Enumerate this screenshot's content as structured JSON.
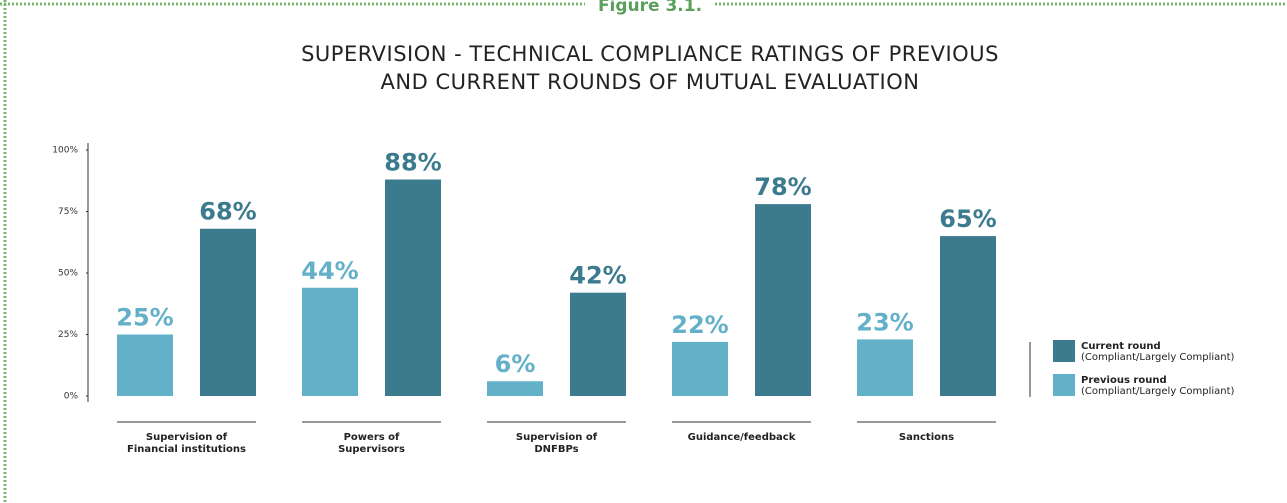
{
  "chart_data": {
    "type": "bar",
    "figure_label": "Figure 3.1.",
    "title": "SUPERVISION - TECHNICAL COMPLIANCE RATINGS OF PREVIOUS\nAND CURRENT ROUNDS OF MUTUAL EVALUATION",
    "categories": [
      "Supervision of\nFinancial institutions",
      "Powers of\nSupervisors",
      "Supervision of\nDNFBPs",
      "Guidance/feedback",
      "Sanctions"
    ],
    "series": [
      {
        "name": "Previous round",
        "color": "#63b1c9",
        "values": [
          25,
          44,
          6,
          22,
          23
        ],
        "value_labels": [
          "25%",
          "44%",
          "6%",
          "22%",
          "23%"
        ]
      },
      {
        "name": "Current round",
        "color": "#3b7b8d",
        "values": [
          68,
          88,
          42,
          78,
          65
        ],
        "value_labels": [
          "68%",
          "88%",
          "42%",
          "78%",
          "65%"
        ]
      }
    ],
    "legend_note": "(Compliant/Largely Compliant)",
    "legend": "right",
    "ylim": [
      0,
      100
    ],
    "yticks": [
      {
        "value": 0,
        "label": "0%"
      },
      {
        "value": 25,
        "label": "25%"
      },
      {
        "value": 50,
        "label": "50%"
      },
      {
        "value": 75,
        "label": "75%"
      },
      {
        "value": 100,
        "label": "100%"
      }
    ],
    "grid": false
  }
}
